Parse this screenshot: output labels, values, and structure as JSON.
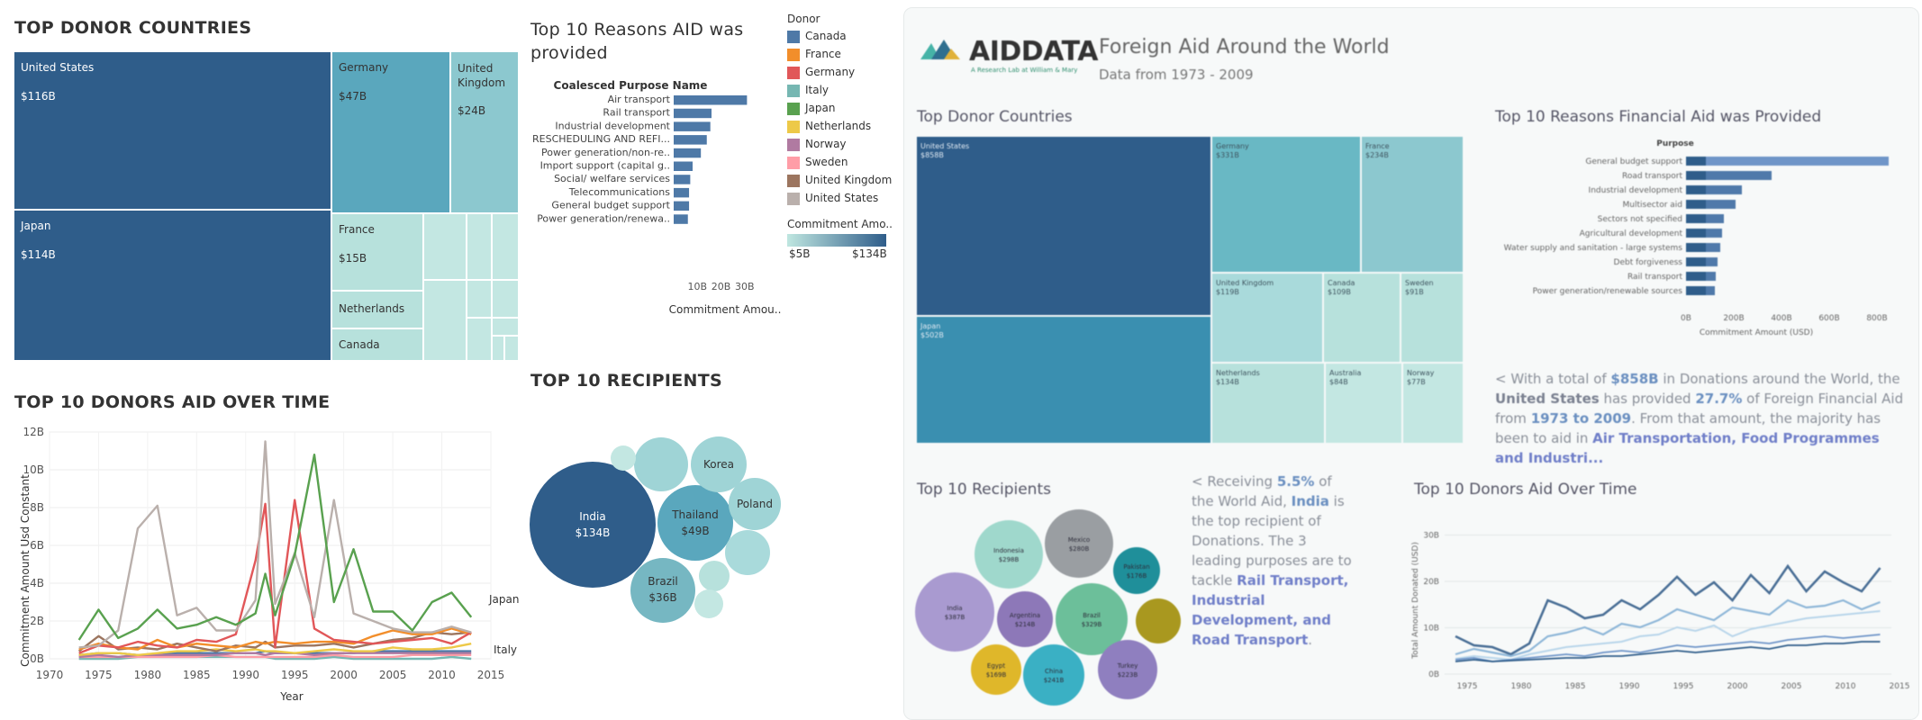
{
  "left": {
    "donor_title": "TOP DONOR COUNTRIES",
    "reasons_title": "Top 10 Reasons AID was provided",
    "recipients_title": "TOP 10 RECIPIENTS",
    "over_time_title": "TOP 10 DONORS AID OVER TIME",
    "legend": {
      "title": "Donor",
      "items": [
        {
          "name": "Canada",
          "color": "#4e79a7"
        },
        {
          "name": "France",
          "color": "#f28e2b"
        },
        {
          "name": "Germany",
          "color": "#e15759"
        },
        {
          "name": "Italy",
          "color": "#76b7b2"
        },
        {
          "name": "Japan",
          "color": "#59a14f"
        },
        {
          "name": "Netherlands",
          "color": "#edc948"
        },
        {
          "name": "Norway",
          "color": "#b07aa1"
        },
        {
          "name": "Sweden",
          "color": "#ff9da7"
        },
        {
          "name": "United Kingdom",
          "color": "#9c755f"
        },
        {
          "name": "United States",
          "color": "#bab0ac"
        }
      ],
      "gradient_title": "Commitment Amo..",
      "gradient_min": "$5B",
      "gradient_max": "$134B"
    },
    "treemap_labels": {
      "us_name": "United States",
      "us_value": "$116B",
      "de_name": "Germany",
      "de_value": "$47B",
      "uk_name": "United Kingdom",
      "uk_value": "$24B",
      "jp_name": "Japan",
      "jp_value": "$114B",
      "fr_name": "France",
      "fr_value": "$15B",
      "nl_name": "Netherlands",
      "ca_name": "Canada"
    },
    "bubble_labels": {
      "india_name": "India",
      "india_value": "$134B",
      "thailand_name": "Thailand",
      "thailand_value": "$49B",
      "brazil_name": "Brazil",
      "brazil_value": "$36B",
      "korea_name": "Korea",
      "poland_name": "Poland"
    }
  },
  "chart_data": [
    {
      "type": "treemap",
      "title": "TOP DONOR COUNTRIES",
      "items": [
        {
          "name": "United States",
          "value": 116
        },
        {
          "name": "Japan",
          "value": 114
        },
        {
          "name": "Germany",
          "value": 47
        },
        {
          "name": "United Kingdom",
          "value": 24
        },
        {
          "name": "France",
          "value": 15
        },
        {
          "name": "Netherlands",
          "value": null
        },
        {
          "name": "Canada",
          "value": null
        }
      ]
    },
    {
      "type": "bar",
      "title": "Top 10 Reasons AID was provided",
      "category_header": "Coalesced Purpose Name",
      "xlabel": "Commitment Amou..",
      "xticks": [
        "10B",
        "20B",
        "30B"
      ],
      "xlim": [
        0,
        32
      ],
      "categories": [
        "Air transport",
        "Rail transport",
        "Industrial development",
        "RESCHEDULING AND REFI...",
        "Power generation/non-re..",
        "Import support (capital g..",
        "Social/ welfare services",
        "Telecommunications",
        "General budget support",
        "Power generation/renewa.."
      ],
      "values": [
        31,
        16,
        15.5,
        14,
        11.5,
        8,
        7,
        6.5,
        6.5,
        6
      ]
    },
    {
      "type": "bubble",
      "title": "TOP 10 RECIPIENTS",
      "items": [
        {
          "name": "India",
          "value": 134
        },
        {
          "name": "Thailand",
          "value": 49
        },
        {
          "name": "Brazil",
          "value": 36
        },
        {
          "name": "Korea",
          "value": null
        },
        {
          "name": "Poland",
          "value": null
        }
      ]
    },
    {
      "type": "line",
      "title": "TOP 10 DONORS AID OVER TIME",
      "xlabel": "Year",
      "ylabel": "Commitment Amount Usd Constant",
      "xlim": [
        1970,
        2015
      ],
      "ylim": [
        0,
        12
      ],
      "yticks": [
        "0B",
        "2B",
        "4B",
        "6B",
        "8B",
        "10B",
        "12B"
      ],
      "xticks": [
        "1970",
        "1975",
        "1980",
        "1985",
        "1990",
        "1995",
        "2000",
        "2005",
        "2010",
        "2015"
      ],
      "end_labels": [
        "Japan",
        "Italy"
      ],
      "x": [
        1973,
        1975,
        1977,
        1979,
        1981,
        1983,
        1985,
        1987,
        1989,
        1991,
        1992,
        1993,
        1995,
        1997,
        1999,
        2001,
        2003,
        2005,
        2007,
        2009,
        2011,
        2013
      ],
      "series": [
        {
          "name": "Japan",
          "color": "#59a14f",
          "values": [
            1.0,
            2.6,
            1.1,
            1.6,
            2.6,
            1.6,
            1.8,
            2.2,
            1.8,
            2.4,
            4.5,
            2.3,
            5.5,
            10.8,
            3.0,
            5.8,
            2.5,
            2.5,
            1.5,
            3.0,
            3.5,
            2.2
          ]
        },
        {
          "name": "United States",
          "color": "#bab0ac",
          "values": [
            0.6,
            0.7,
            1.5,
            6.9,
            8.1,
            2.3,
            2.7,
            1.5,
            1.5,
            3.1,
            11.5,
            2.9,
            5.6,
            2.2,
            8.4,
            2.4,
            2.0,
            1.6,
            1.4,
            1.4,
            1.7,
            1.4
          ]
        },
        {
          "name": "Germany",
          "color": "#e15759",
          "values": [
            0.3,
            0.7,
            0.6,
            0.9,
            0.7,
            0.6,
            1.0,
            0.9,
            1.3,
            5.2,
            8.2,
            0.6,
            8.4,
            1.6,
            1.0,
            0.9,
            0.8,
            0.9,
            1.0,
            1.1,
            0.8,
            1.4
          ]
        },
        {
          "name": "France",
          "color": "#f28e2b",
          "values": [
            0.5,
            0.8,
            0.6,
            0.5,
            1.0,
            0.6,
            0.8,
            0.7,
            0.6,
            0.9,
            0.8,
            0.9,
            0.8,
            0.9,
            0.9,
            0.8,
            1.2,
            1.5,
            1.3,
            1.3,
            1.6,
            1.3
          ]
        },
        {
          "name": "United Kingdom",
          "color": "#9c755f",
          "values": [
            0.4,
            1.2,
            0.5,
            0.6,
            0.5,
            0.8,
            0.6,
            0.4,
            0.7,
            0.6,
            0.9,
            0.6,
            0.7,
            0.7,
            0.8,
            0.6,
            0.8,
            1.0,
            1.1,
            1.4,
            1.3,
            1.4
          ]
        },
        {
          "name": "Netherlands",
          "color": "#edc948",
          "values": [
            0.2,
            0.3,
            0.3,
            0.2,
            0.3,
            0.4,
            0.4,
            0.5,
            0.4,
            0.5,
            0.4,
            0.4,
            0.3,
            0.4,
            0.5,
            0.4,
            0.4,
            0.6,
            0.5,
            0.5,
            0.6,
            0.8
          ]
        },
        {
          "name": "Norway",
          "color": "#b07aa1",
          "values": [
            0.1,
            0.2,
            0.1,
            0.2,
            0.2,
            0.2,
            0.2,
            0.2,
            0.3,
            0.3,
            0.2,
            0.3,
            0.3,
            0.2,
            0.3,
            0.3,
            0.3,
            0.3,
            0.3,
            0.3,
            0.3,
            0.3
          ]
        },
        {
          "name": "Canada",
          "color": "#4e79a7",
          "values": [
            0.2,
            0.3,
            0.3,
            0.2,
            0.2,
            0.3,
            0.3,
            0.3,
            0.3,
            0.3,
            0.4,
            0.3,
            0.3,
            0.3,
            0.3,
            0.3,
            0.4,
            0.4,
            0.4,
            0.4,
            0.4,
            0.4
          ]
        },
        {
          "name": "Sweden",
          "color": "#ff9da7",
          "values": [
            0.1,
            0.1,
            0.1,
            0.1,
            0.1,
            0.1,
            0.1,
            0.2,
            0.1,
            0.1,
            0.1,
            0.1,
            0.1,
            0.1,
            0.2,
            0.1,
            0.1,
            0.1,
            0.2,
            0.2,
            0.2,
            0.2
          ]
        },
        {
          "name": "Italy",
          "color": "#76b7b2",
          "values": [
            0.0,
            0.0,
            0.0,
            0.1,
            0.1,
            0.1,
            0.1,
            0.1,
            0.1,
            0.1,
            0.1,
            0.0,
            0.0,
            0.0,
            0.1,
            0.0,
            0.0,
            0.0,
            0.0,
            0.0,
            0.1,
            0.0
          ]
        }
      ]
    }
  ],
  "right": {
    "brand": "AIDDATA",
    "brand_sub": "A Research Lab at William & Mary",
    "title": "Foreign Aid Around the World",
    "subtitle": "Data from 1973 - 2009",
    "donor_title": "Top Donor Countries",
    "reasons_title": "Top 10 Reasons Financial Aid was Provided",
    "reasons_header": "Purpose",
    "reasons_xlabel": "Commitment Amount (USD)",
    "reasons_xticks": [
      "0B",
      "200B",
      "400B",
      "600B",
      "800B"
    ],
    "reasons_cats": [
      "General budget support",
      "Road transport",
      "Industrial development",
      "Multisector aid",
      "Sectors not specified",
      "Agricultural development",
      "Water supply and sanitation - large systems",
      "Debt forgiveness",
      "Rail transport",
      "Power generation/renewable sources"
    ],
    "recipients_title": "Top 10 Recipients",
    "over_time_title": "Top 10 Donors Aid Over Time",
    "over_time_ylabel": "Total Amount Donated (USD)",
    "over_time_yticks": [
      "0B",
      "10B",
      "20B",
      "30B"
    ],
    "over_time_xticks": [
      "1975",
      "1980",
      "1985",
      "1990",
      "1995",
      "2000",
      "2005",
      "2010",
      "2015"
    ],
    "treemap": [
      {
        "name": "United States",
        "value": "$858B"
      },
      {
        "name": "Japan",
        "value": "$502B"
      },
      {
        "name": "Germany",
        "value": "$331B"
      },
      {
        "name": "France",
        "value": "$234B"
      },
      {
        "name": "United Kingdom",
        "value": "$119B"
      },
      {
        "name": "Canada",
        "value": "$109B"
      },
      {
        "name": "Sweden",
        "value": "$91B"
      },
      {
        "name": "Netherlands",
        "value": "$134B"
      },
      {
        "name": "Australia",
        "value": "$84B"
      },
      {
        "name": "Norway",
        "value": "$77B"
      }
    ],
    "bubbles": [
      {
        "name": "India",
        "value": "$387B"
      },
      {
        "name": "Indonesia",
        "value": "$298B"
      },
      {
        "name": "Mexico",
        "value": "$280B"
      },
      {
        "name": "Pakistan",
        "value": "$176B"
      },
      {
        "name": "Argentina",
        "value": "$214B"
      },
      {
        "name": "Brazil",
        "value": "$329B"
      },
      {
        "name": "Egypt",
        "value": "$169B"
      },
      {
        "name": "China",
        "value": "$241B"
      },
      {
        "name": "Turkey",
        "value": "$223B"
      }
    ],
    "note1": {
      "p1": "< With a total of ",
      "b1": "$858B",
      "p2": " in Donations around the World, the ",
      "b2": "United States",
      "p3": " has provided ",
      "b3": "27.7%",
      "p4": " of Foreign Financial Aid from ",
      "b4": "1973 to 2009",
      "p5": ". From that amount, the majority has been to aid in ",
      "b5": "Air Transportation, Food Programmes and Industri..."
    },
    "note2": {
      "p1": "< Receiving ",
      "b1": "5.5%",
      "p2": " of the World Aid, ",
      "b2": "India",
      "p3": " is the top recipient of Donations. The 3 leading purposes are to tackle ",
      "b3": "Rail Transport, Industrial Development, and Road Transport",
      "p4": "."
    }
  }
}
